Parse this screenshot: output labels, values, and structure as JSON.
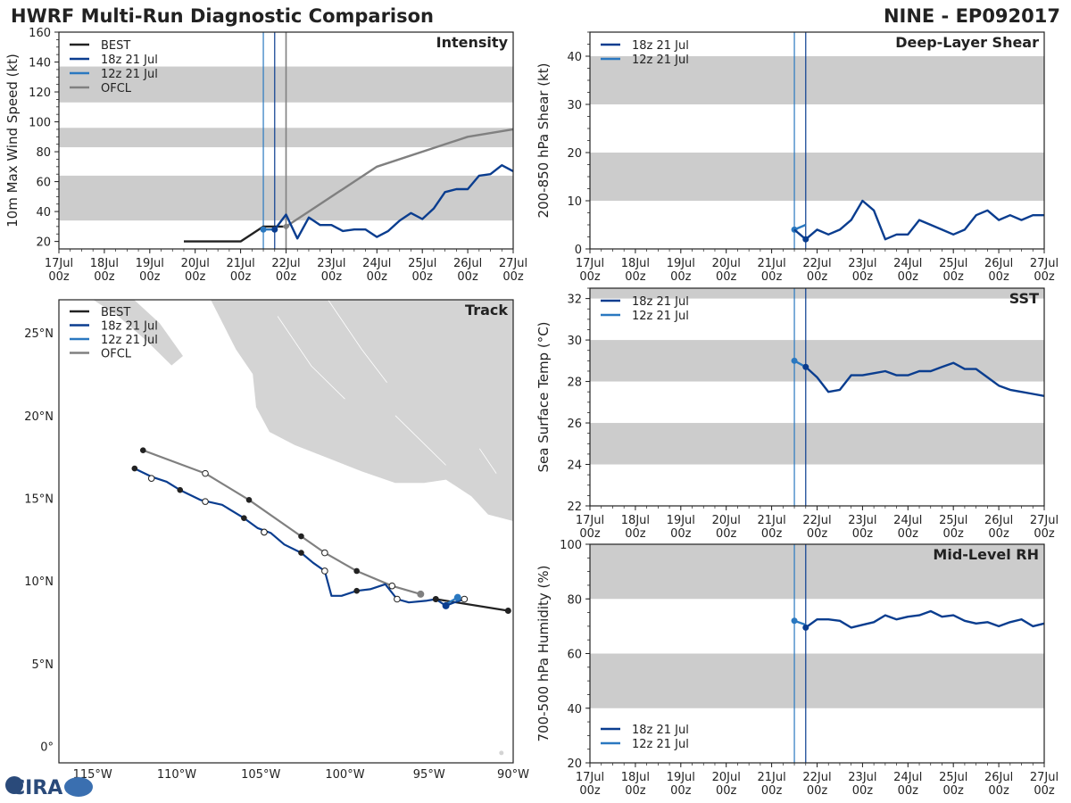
{
  "header": {
    "title": "HWRF Multi-Run Diagnostic Comparison",
    "storm": "NINE - EP092017"
  },
  "logo": {
    "text": "CIRA"
  },
  "colors": {
    "best": "#222222",
    "run18": "#0a3d8f",
    "run12": "#2a78c0",
    "ofcl": "#808080",
    "band": "#cccccc",
    "land": "#d4d4d4"
  },
  "time_axis": {
    "days": [
      "17Jul",
      "18Jul",
      "19Jul",
      "20Jul",
      "21Jul",
      "22Jul",
      "23Jul",
      "24Jul",
      "25Jul",
      "26Jul",
      "27Jul"
    ],
    "hour_label": "00z",
    "vline_runs": [
      21.5,
      21.75
    ],
    "vline_ofcl": 22.0
  },
  "chart_data": [
    {
      "id": "intensity",
      "type": "line",
      "title": "Intensity",
      "ylabel": "10m Max Wind Speed (kt)",
      "xlim": [
        17,
        27
      ],
      "ylim": [
        15,
        160
      ],
      "yticks": [
        20,
        40,
        60,
        80,
        100,
        120,
        140,
        160
      ],
      "bands": [
        [
          34,
          64
        ],
        [
          83,
          96
        ],
        [
          113,
          137
        ]
      ],
      "legend": [
        "BEST",
        "18z 21 Jul",
        "12z 21 Jul",
        "OFCL"
      ],
      "series": [
        {
          "name": "BEST",
          "key": "best",
          "x": [
            19.75,
            21.0,
            21.5,
            22.0
          ],
          "y": [
            20,
            20,
            30,
            30
          ]
        },
        {
          "name": "OFCL",
          "key": "ofcl",
          "x": [
            22.0,
            22.5,
            24.0,
            26.0,
            27.0
          ],
          "y": [
            30,
            40,
            70,
            90,
            95
          ]
        },
        {
          "name": "12z 21 Jul",
          "key": "run12",
          "x": [
            21.5,
            21.75
          ],
          "y": [
            28,
            28
          ],
          "marker_start": true
        },
        {
          "name": "18z 21 Jul",
          "key": "run18",
          "x": [
            21.75,
            22.0,
            22.25,
            22.5,
            22.75,
            23.0,
            23.25,
            23.5,
            23.75,
            24.0,
            24.25,
            24.5,
            24.75,
            25.0,
            25.25,
            25.5,
            25.75,
            26.0,
            26.25,
            26.5,
            26.75,
            27.0
          ],
          "y": [
            28,
            38,
            22,
            36,
            31,
            31,
            27,
            28,
            28,
            23,
            27,
            34,
            39,
            35,
            42,
            53,
            55,
            55,
            64,
            65,
            71,
            67
          ],
          "marker_start": true
        }
      ]
    },
    {
      "id": "shear",
      "type": "line",
      "title": "Deep-Layer Shear",
      "ylabel": "200-850 hPa Shear (kt)",
      "xlim": [
        17,
        27
      ],
      "ylim": [
        0,
        45
      ],
      "yticks": [
        0,
        10,
        20,
        30,
        40
      ],
      "bands": [
        [
          10,
          20
        ],
        [
          30,
          40
        ]
      ],
      "legend": [
        "18z 21 Jul",
        "12z 21 Jul"
      ],
      "series": [
        {
          "name": "12z 21 Jul",
          "key": "run12",
          "x": [
            21.5,
            21.75
          ],
          "y": [
            4,
            5
          ],
          "marker_start": true
        },
        {
          "name": "18z 21 Jul",
          "key": "run18",
          "x": [
            21.5,
            21.75,
            22.0,
            22.25,
            22.5,
            22.75,
            23.0,
            23.25,
            23.5,
            23.75,
            24.0,
            24.25,
            24.5,
            24.75,
            25.0,
            25.25,
            25.5,
            25.75,
            26.0,
            26.25,
            26.5,
            26.75,
            27.0
          ],
          "y": [
            4,
            2,
            4,
            3,
            4,
            6,
            10,
            8,
            2,
            3,
            3,
            6,
            5,
            4,
            3,
            4,
            7,
            8,
            6,
            7,
            6,
            7,
            7
          ],
          "marker_index": 1
        }
      ]
    },
    {
      "id": "sst",
      "type": "line",
      "title": "SST",
      "ylabel": "Sea Surface Temp (°C)",
      "xlim": [
        17,
        27
      ],
      "ylim": [
        22,
        32.5
      ],
      "yticks": [
        22,
        24,
        26,
        28,
        30,
        32
      ],
      "bands": [
        [
          24,
          26
        ],
        [
          28,
          30
        ],
        [
          32,
          32.5
        ]
      ],
      "legend": [
        "18z 21 Jul",
        "12z 21 Jul"
      ],
      "series": [
        {
          "name": "12z 21 Jul",
          "key": "run12",
          "x": [
            21.5,
            21.75
          ],
          "y": [
            29.0,
            28.7
          ],
          "marker_start": true
        },
        {
          "name": "18z 21 Jul",
          "key": "run18",
          "x": [
            21.75,
            22.0,
            22.25,
            22.5,
            22.75,
            23.0,
            23.25,
            23.5,
            23.75,
            24.0,
            24.25,
            24.5,
            24.75,
            25.0,
            25.25,
            25.5,
            25.75,
            26.0,
            26.25,
            26.5,
            26.75,
            27.0
          ],
          "y": [
            28.7,
            28.2,
            27.5,
            27.6,
            28.3,
            28.3,
            28.4,
            28.5,
            28.3,
            28.3,
            28.5,
            28.5,
            28.7,
            28.9,
            28.6,
            28.6,
            28.2,
            27.8,
            27.6,
            27.5,
            27.4,
            27.3
          ],
          "marker_start": true
        }
      ]
    },
    {
      "id": "rh",
      "type": "line",
      "title": "Mid-Level RH",
      "ylabel": "700-500 hPa Humidity (%)",
      "xlim": [
        17,
        27
      ],
      "ylim": [
        20,
        100
      ],
      "yticks": [
        20,
        40,
        60,
        80,
        100
      ],
      "bands": [
        [
          40,
          60
        ],
        [
          80,
          100
        ]
      ],
      "legend": [
        "18z 21 Jul",
        "12z 21 Jul"
      ],
      "legend_loc": "bottom-left",
      "series": [
        {
          "name": "12z 21 Jul",
          "key": "run12",
          "x": [
            21.5,
            21.75
          ],
          "y": [
            72,
            70.5
          ],
          "marker_start": true
        },
        {
          "name": "18z 21 Jul",
          "key": "run18",
          "x": [
            21.75,
            22.0,
            22.25,
            22.5,
            22.75,
            23.0,
            23.25,
            23.5,
            23.75,
            24.0,
            24.25,
            24.5,
            24.75,
            25.0,
            25.25,
            25.5,
            25.75,
            26.0,
            26.25,
            26.5,
            26.75,
            27.0
          ],
          "y": [
            69.5,
            72.5,
            72.5,
            72,
            69.5,
            70.5,
            71.5,
            74,
            72.5,
            73.5,
            74,
            75.5,
            73.5,
            74,
            72,
            71,
            71.5,
            70,
            71.5,
            72.5,
            70,
            71
          ],
          "marker_start": true
        }
      ]
    },
    {
      "id": "track",
      "type": "map-track",
      "title": "Track",
      "lon_range": [
        -117,
        -90
      ],
      "lat_range": [
        -1,
        27
      ],
      "xticks": [
        -115,
        -110,
        -105,
        -100,
        -95,
        -90
      ],
      "xtick_labels": [
        "115°W",
        "110°W",
        "105°W",
        "100°W",
        "95°W",
        "90°W"
      ],
      "yticks": [
        0,
        5,
        10,
        15,
        20,
        25
      ],
      "ytick_labels": [
        "0°",
        "5°N",
        "10°N",
        "15°N",
        "20°N",
        "25°N"
      ],
      "legend": [
        "BEST",
        "18z 21 Jul",
        "12z 21 Jul",
        "OFCL"
      ],
      "series": [
        {
          "name": "BEST",
          "key": "best",
          "lon": [
            -90.3,
            -94.6
          ],
          "lat": [
            8.2,
            8.9
          ],
          "markers": [
            -90.3,
            -94.6
          ]
        },
        {
          "name": "OFCL",
          "key": "ofcl",
          "lon": [
            -95.5,
            -97.2,
            -99.3,
            -101.2,
            -102.6,
            -105.7,
            -108.3,
            -112.0
          ],
          "lat": [
            9.2,
            9.7,
            10.6,
            11.7,
            12.7,
            14.9,
            16.5,
            17.9
          ],
          "dots_open": [
            [
              -97.2,
              9.7
            ],
            [
              -101.2,
              11.7
            ],
            [
              -104.8,
              12.95
            ],
            [
              -108.3,
              16.5
            ]
          ],
          "dots_filled": [
            [
              -95.5,
              9.2
            ],
            [
              -99.3,
              10.6
            ],
            [
              -102.6,
              12.7
            ],
            [
              -105.7,
              14.9
            ],
            [
              -108.3,
              16.5
            ],
            [
              -112.0,
              17.9
            ]
          ]
        },
        {
          "name": "12z 21 Jul",
          "key": "run12",
          "lon": [
            -93.3,
            -94.0
          ],
          "lat": [
            9.0,
            8.6
          ],
          "markers": [
            -93.3
          ]
        },
        {
          "name": "18z 21 Jul",
          "key": "run18",
          "lon": [
            -92.9,
            -93.5,
            -94.0,
            -94.6,
            -95.2,
            -96.2,
            -96.9,
            -97.6,
            -98.5,
            -99.3,
            -100.2,
            -100.8,
            -101.2,
            -101.9,
            -102.6,
            -103.6,
            -104.4,
            -105.2,
            -106.0,
            -107.3,
            -108.6,
            -109.8,
            -110.6,
            -111.5,
            -112.5
          ],
          "lat": [
            8.9,
            8.7,
            8.5,
            8.9,
            8.8,
            8.7,
            8.9,
            9.8,
            9.5,
            9.4,
            9.1,
            9.1,
            10.6,
            11.1,
            11.7,
            12.2,
            12.9,
            13.2,
            13.8,
            14.6,
            14.9,
            15.5,
            16.0,
            16.3,
            16.8
          ],
          "dots_open": [
            [
              -92.9,
              8.9
            ],
            [
              -96.9,
              8.9
            ],
            [
              -101.2,
              10.6
            ],
            [
              -104.8,
              12.95
            ],
            [
              -108.3,
              14.8
            ],
            [
              -111.5,
              16.2
            ]
          ],
          "dots_filled": [
            [
              -94.6,
              8.9
            ],
            [
              -99.3,
              9.4
            ],
            [
              -102.6,
              11.7
            ],
            [
              -106.0,
              13.8
            ],
            [
              -109.8,
              15.5
            ],
            [
              -112.5,
              16.8
            ]
          ],
          "marker_big": [
            -94.0,
            8.5
          ]
        }
      ]
    }
  ]
}
